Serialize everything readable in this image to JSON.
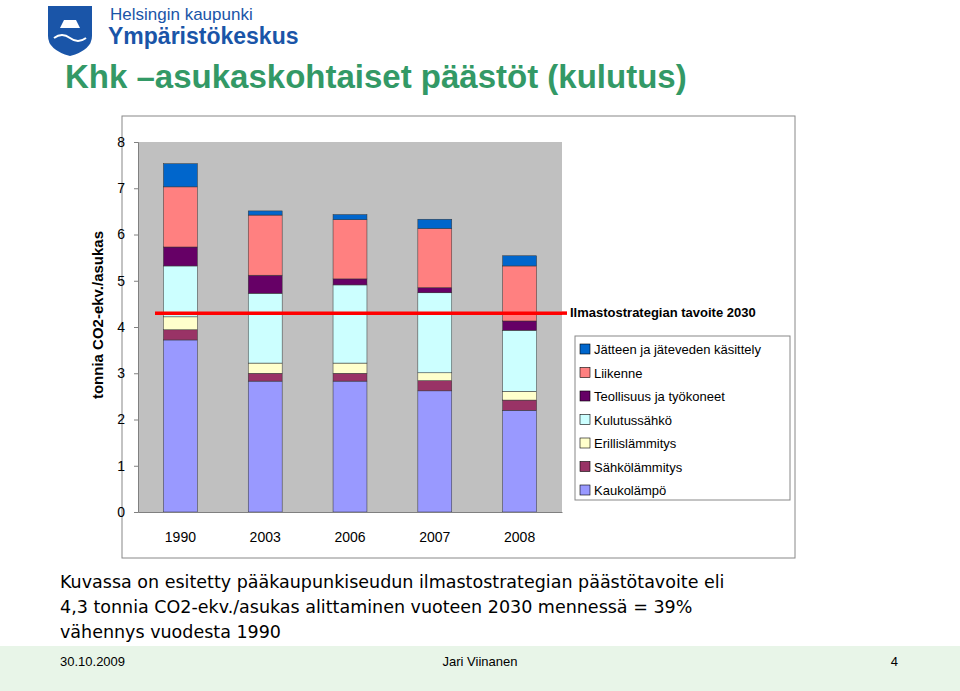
{
  "header": {
    "org": "Helsingin kaupunki",
    "unit": "Ympäristökeskus"
  },
  "title": "Khk –asukaskohtaiset päästöt (kulutus)",
  "chart_data": {
    "type": "bar",
    "stacked": true,
    "grid": false,
    "legend": "right",
    "y_label": "tonnia CO2-ekv./asukas",
    "categories": [
      "1990",
      "2003",
      "2006",
      "2007",
      "2008"
    ],
    "ylim": [
      0,
      8
    ],
    "yticks": [
      0,
      1,
      2,
      3,
      4,
      5,
      6,
      7,
      8
    ],
    "series": [
      {
        "name": "Kaukolämpö",
        "color": "#9999ff",
        "values": [
          3.72,
          2.83,
          2.83,
          2.62,
          2.2
        ]
      },
      {
        "name": "Sähkölämmitys",
        "color": "#993366",
        "values": [
          0.22,
          0.17,
          0.17,
          0.22,
          0.22
        ]
      },
      {
        "name": "Erillislämmitys",
        "color": "#ffffcc",
        "values": [
          0.28,
          0.22,
          0.22,
          0.17,
          0.19
        ]
      },
      {
        "name": "Kulutussähkö",
        "color": "#ccffff",
        "values": [
          1.1,
          1.51,
          1.69,
          1.73,
          1.32
        ]
      },
      {
        "name": "Teollisuus ja työkoneet",
        "color": "#660066",
        "values": [
          0.41,
          0.39,
          0.13,
          0.11,
          0.2
        ]
      },
      {
        "name": "Liikenne",
        "color": "#ff8080",
        "values": [
          1.3,
          1.3,
          1.28,
          1.28,
          1.19
        ]
      },
      {
        "name": "Jätteen ja jäteveden käsittely",
        "color": "#0066cc",
        "values": [
          0.5,
          0.09,
          0.11,
          0.2,
          0.22
        ]
      }
    ],
    "annotations": [
      {
        "text": "Ilmastostrategian tavoite 2030",
        "value": 4.3,
        "color": "#ff0000"
      }
    ]
  },
  "caption": [
    "Kuvassa on esitetty pääkaupunkiseudun ilmastostrategian päästötavoite eli",
    "4,3 tonnia CO2-ekv./asukas alittaminen vuoteen 2030 mennessä = 39%",
    "vähennys vuodesta 1990"
  ],
  "footer": {
    "date": "30.10.2009",
    "author": "Jari Viinanen",
    "page": "4"
  }
}
